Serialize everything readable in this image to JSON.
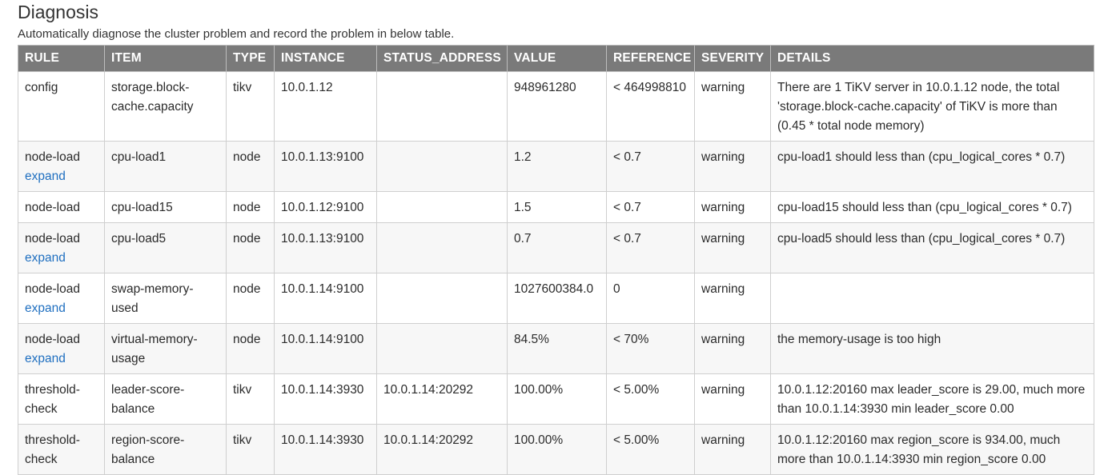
{
  "page": {
    "title": "Diagnosis",
    "subtitle": "Automatically diagnose the cluster problem and record the problem in below table."
  },
  "table": {
    "headers": [
      "RULE",
      "ITEM",
      "TYPE",
      "INSTANCE",
      "STATUS_ADDRESS",
      "VALUE",
      "REFERENCE",
      "SEVERITY",
      "DETAILS"
    ],
    "rows": [
      {
        "rule": "config",
        "expand": "",
        "item": "storage.block-cache.capacity",
        "type": "tikv",
        "instance": "10.0.1.12",
        "status_address": "",
        "value": "948961280",
        "reference": "< 464998810",
        "severity": "warning",
        "details": "There are 1 TiKV server in 10.0.1.12 node, the total 'storage.block-cache.capacity' of TiKV is more than (0.45 * total node memory)"
      },
      {
        "rule": "node-load",
        "expand": "expand",
        "item": "cpu-load1",
        "type": "node",
        "instance": "10.0.1.13:9100",
        "status_address": "",
        "value": "1.2",
        "reference": "< 0.7",
        "severity": "warning",
        "details": "cpu-load1 should less than (cpu_logical_cores * 0.7)"
      },
      {
        "rule": "node-load",
        "expand": "",
        "item": "cpu-load15",
        "type": "node",
        "instance": "10.0.1.12:9100",
        "status_address": "",
        "value": "1.5",
        "reference": "< 0.7",
        "severity": "warning",
        "details": "cpu-load15 should less than (cpu_logical_cores * 0.7)"
      },
      {
        "rule": "node-load",
        "expand": "expand",
        "item": "cpu-load5",
        "type": "node",
        "instance": "10.0.1.13:9100",
        "status_address": "",
        "value": "0.7",
        "reference": "< 0.7",
        "severity": "warning",
        "details": "cpu-load5 should less than (cpu_logical_cores * 0.7)"
      },
      {
        "rule": "node-load",
        "expand": "expand",
        "item": "swap-memory-used",
        "type": "node",
        "instance": "10.0.1.14:9100",
        "status_address": "",
        "value": "1027600384.0",
        "reference": "0",
        "severity": "warning",
        "details": ""
      },
      {
        "rule": "node-load",
        "expand": "expand",
        "item": "virtual-memory-usage",
        "type": "node",
        "instance": "10.0.1.14:9100",
        "status_address": "",
        "value": "84.5%",
        "reference": "< 70%",
        "severity": "warning",
        "details": "the memory-usage is too high"
      },
      {
        "rule": "threshold-check",
        "expand": "",
        "item": "leader-score-balance",
        "type": "tikv",
        "instance": "10.0.1.14:3930",
        "status_address": "10.0.1.14:20292",
        "value": "100.00%",
        "reference": "< 5.00%",
        "severity": "warning",
        "details": "10.0.1.12:20160 max leader_score is 29.00, much more than 10.0.1.14:3930 min leader_score 0.00"
      },
      {
        "rule": "threshold-check",
        "expand": "",
        "item": "region-score-balance",
        "type": "tikv",
        "instance": "10.0.1.14:3930",
        "status_address": "10.0.1.14:20292",
        "value": "100.00%",
        "reference": "< 5.00%",
        "severity": "warning",
        "details": "10.0.1.12:20160 max region_score is 934.00, much more than 10.0.1.14:3930 min region_score 0.00"
      }
    ]
  }
}
